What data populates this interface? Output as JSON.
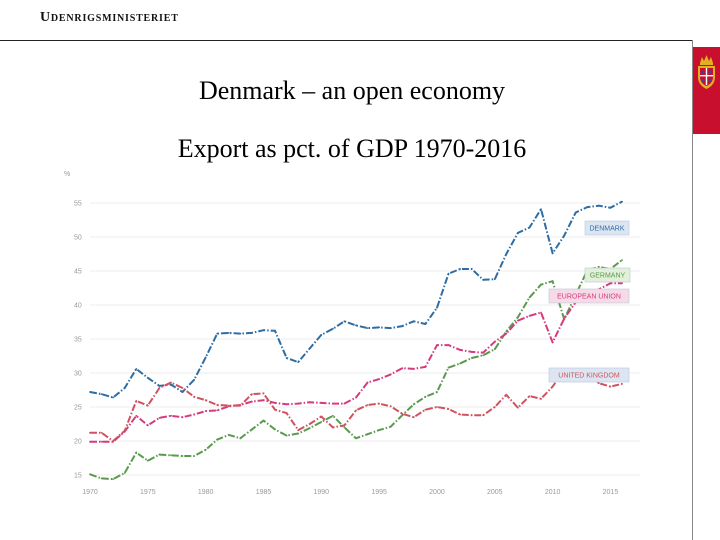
{
  "header": {
    "ministry": "Udenrigsministeriet"
  },
  "slide": {
    "title": "Denmark – an open economy",
    "subtitle": "Export  as pct. of GDP 1970-2016"
  },
  "colors": {
    "crest_bg": "#c8102e",
    "gold": "#e0b020"
  },
  "chart_data": {
    "type": "line",
    "title": "Export  as pct. of GDP 1970-2016",
    "ylabel": "%",
    "xlabel": "",
    "xlim": [
      1970,
      2016
    ],
    "ylim": [
      15,
      55
    ],
    "yticks": [
      15,
      20,
      25,
      30,
      35,
      40,
      45,
      50,
      55
    ],
    "xtick_labels": [
      "1970",
      "1975",
      "1980",
      "1985",
      "1990",
      "1995",
      "2000",
      "2005",
      "2010",
      "2015"
    ],
    "xtick_values": [
      1970,
      1975,
      1980,
      1985,
      1990,
      1995,
      2000,
      2005,
      2010,
      2015
    ],
    "grid": true,
    "x": [
      1970,
      1971,
      1972,
      1973,
      1974,
      1975,
      1976,
      1977,
      1978,
      1979,
      1980,
      1981,
      1982,
      1983,
      1984,
      1985,
      1986,
      1987,
      1988,
      1989,
      1990,
      1991,
      1992,
      1993,
      1994,
      1995,
      1996,
      1997,
      1998,
      1999,
      2000,
      2001,
      2002,
      2003,
      2004,
      2005,
      2006,
      2007,
      2008,
      2009,
      2010,
      2011,
      2012,
      2013,
      2014,
      2015,
      2016
    ],
    "series": [
      {
        "name": "DENMARK",
        "color": "#2e6da4",
        "label_bg": "#dce6f2",
        "values": [
          27.2,
          26.9,
          26.4,
          27.8,
          30.6,
          29.3,
          28.1,
          28.3,
          27.2,
          29.0,
          32.3,
          35.8,
          35.9,
          35.8,
          35.9,
          36.3,
          36.2,
          32.2,
          31.6,
          33.6,
          35.6,
          36.5,
          37.6,
          37.0,
          36.6,
          36.7,
          36.6,
          36.9,
          37.6,
          37.2,
          39.6,
          44.6,
          45.3,
          45.3,
          43.7,
          43.8,
          47.5,
          50.6,
          51.4,
          54.1,
          47.6,
          50.2,
          53.6,
          54.4,
          54.6,
          54.3,
          55.2
        ]
      },
      {
        "name": "GERMANY",
        "color": "#5b9a4e",
        "label_bg": "#e2efd9",
        "values": [
          15.1,
          14.5,
          14.4,
          15.3,
          18.3,
          17.1,
          18.0,
          17.9,
          17.8,
          17.8,
          18.7,
          20.2,
          20.9,
          20.4,
          21.7,
          23.0,
          21.7,
          20.8,
          21.1,
          21.9,
          22.8,
          23.7,
          22.0,
          20.4,
          21.0,
          21.6,
          22.1,
          23.8,
          25.4,
          26.5,
          27.2,
          30.8,
          31.4,
          32.2,
          32.6,
          33.5,
          36.1,
          38.2,
          41.1,
          43.0,
          43.5,
          37.9,
          41.5,
          45.1,
          45.6,
          45.3,
          46.6
        ]
      },
      {
        "name": "EUROPEAN UNION",
        "color": "#d63a7e",
        "label_bg": "#f6dbe7",
        "values": [
          19.9,
          19.9,
          19.9,
          21.4,
          23.7,
          22.3,
          23.4,
          23.7,
          23.5,
          23.9,
          24.4,
          24.5,
          25.1,
          25.3,
          25.8,
          26.0,
          25.6,
          25.4,
          25.5,
          25.7,
          25.6,
          25.5,
          25.5,
          26.4,
          28.6,
          29.1,
          29.8,
          30.7,
          30.6,
          30.9,
          34.1,
          34.1,
          33.4,
          33.1,
          33.0,
          34.6,
          35.8,
          37.7,
          38.4,
          38.9,
          34.5,
          38.0,
          40.4,
          41.5,
          42.3,
          43.2,
          43.2
        ]
      },
      {
        "name": "UNITED KINGDOM",
        "color": "#d0525e",
        "label_bg": "#dce6f2",
        "values": [
          21.2,
          21.2,
          20.0,
          21.5,
          25.9,
          25.2,
          27.8,
          28.6,
          27.8,
          26.5,
          26.0,
          25.3,
          25.2,
          25.2,
          26.9,
          27.0,
          24.6,
          24.1,
          21.6,
          22.5,
          23.6,
          22.0,
          22.3,
          24.5,
          25.3,
          25.5,
          25.1,
          24.0,
          23.5,
          24.6,
          25.0,
          24.7,
          23.9,
          23.8,
          23.8,
          25.0,
          26.8,
          24.9,
          26.6,
          26.2,
          28.0,
          30.4,
          30.2,
          30.0,
          28.5,
          28.0,
          28.4
        ]
      }
    ]
  }
}
